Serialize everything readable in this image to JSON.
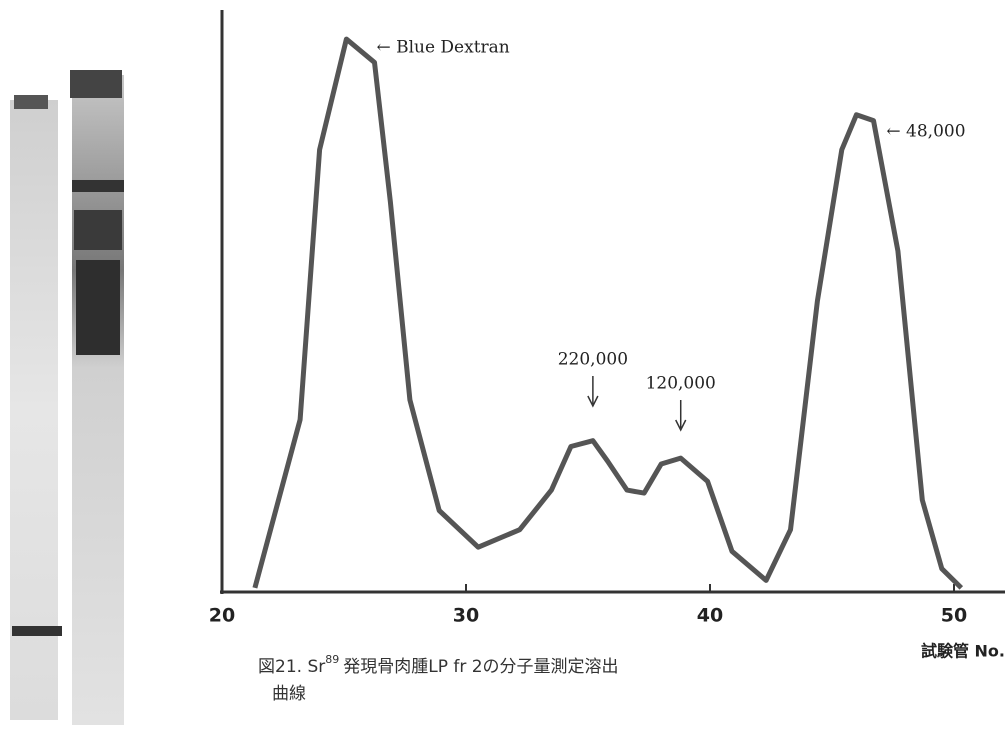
{
  "chart_data": {
    "type": "line",
    "x_label": "試験管 No.",
    "caption": [
      "図21. Sr",
      "89",
      "発現骨肉腫LP fr 2の分子量測定溶出",
      "曲線"
    ],
    "x": [
      21.35,
      23.2,
      24.0,
      25.1,
      26.25,
      26.9,
      27.7,
      28.9,
      30.5,
      32.2,
      33.5,
      34.3,
      35.2,
      35.8,
      36.6,
      37.3,
      38.0,
      38.8,
      39.9,
      40.9,
      42.3,
      43.3,
      44.4,
      45.4,
      46.0,
      46.7,
      47.7,
      48.7,
      49.5,
      50.3
    ],
    "values": [
      0.7,
      29.6,
      76,
      95,
      91,
      67,
      33,
      14,
      7.7,
      10.7,
      17.5,
      25,
      26,
      22.5,
      17.5,
      17,
      22,
      23,
      19,
      7,
      2,
      10.7,
      50,
      76,
      82,
      81,
      58.6,
      15.8,
      4,
      0.7
    ],
    "color": "#555555",
    "xlim": [
      20,
      52
    ],
    "xticks": [
      20,
      30,
      40,
      50
    ],
    "ylim": [
      0,
      100
    ],
    "annotations": [
      {
        "text": "← Blue Dextran",
        "x": 25.1
      },
      {
        "text": "220,000",
        "x": 35.2
      },
      {
        "text": "120,000",
        "x": 38.8
      },
      {
        "text": "← 48,000",
        "x": 46.0
      }
    ]
  }
}
